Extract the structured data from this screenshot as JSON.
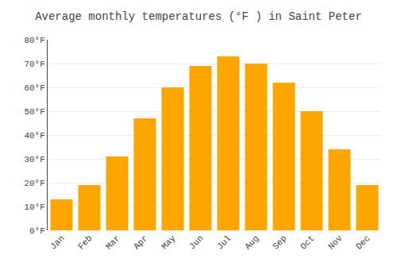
{
  "chart_data": {
    "type": "bar",
    "title": "Average monthly temperatures (°F ) in Saint Peter",
    "categories": [
      "Jan",
      "Feb",
      "Mar",
      "Apr",
      "May",
      "Jun",
      "Jul",
      "Aug",
      "Sep",
      "Oct",
      "Nov",
      "Dec"
    ],
    "values": [
      13,
      19,
      31,
      47,
      60,
      69,
      73,
      70,
      62,
      50,
      34,
      19
    ],
    "color": "#FFA500",
    "ylim": [
      0,
      80
    ],
    "yticks": [
      {
        "value": 0,
        "label": "0°F"
      },
      {
        "value": 10,
        "label": "10°F"
      },
      {
        "value": 20,
        "label": "20°F"
      },
      {
        "value": 30,
        "label": "30°F"
      },
      {
        "value": 40,
        "label": "40°F"
      },
      {
        "value": 50,
        "label": "50°F"
      },
      {
        "value": 60,
        "label": "60°F"
      },
      {
        "value": 70,
        "label": "70°F"
      },
      {
        "value": 80,
        "label": "80°F"
      }
    ],
    "grid": true
  }
}
